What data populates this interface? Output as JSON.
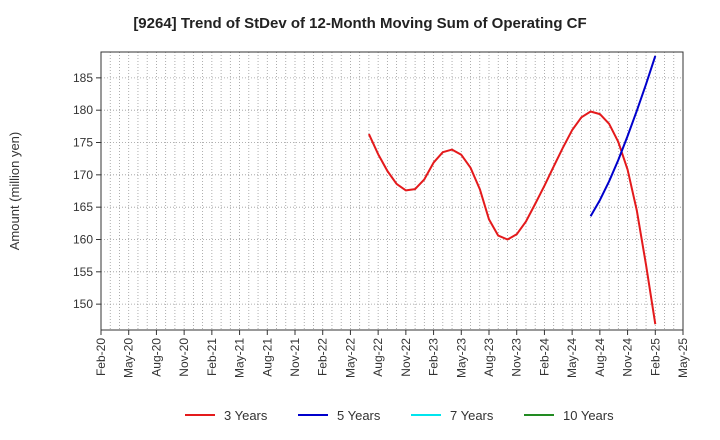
{
  "chart_data": {
    "type": "line",
    "title": "[9264]  Trend of StDev of 12-Month Moving Sum of Operating CF",
    "xlabel": "",
    "ylabel": "Amount (million yen)",
    "ylim": [
      146,
      189
    ],
    "yticks": [
      150,
      155,
      160,
      165,
      170,
      175,
      180,
      185
    ],
    "x_tick_labels": [
      "Feb-20",
      "May-20",
      "Aug-20",
      "Nov-20",
      "Feb-21",
      "May-21",
      "Aug-21",
      "Nov-21",
      "Feb-22",
      "May-22",
      "Aug-22",
      "Nov-22",
      "Feb-23",
      "May-23",
      "Aug-23",
      "Nov-23",
      "Feb-24",
      "May-24",
      "Aug-24",
      "Nov-24",
      "Feb-25",
      "May-25"
    ],
    "grid": true,
    "legend_position": "bottom",
    "series": [
      {
        "name": "3 Years",
        "color": "#e41a1c",
        "x": [
          "Jul-22",
          "Aug-22",
          "Sep-22",
          "Oct-22",
          "Nov-22",
          "Dec-22",
          "Jan-23",
          "Feb-23",
          "Mar-23",
          "Apr-23",
          "May-23",
          "Jun-23",
          "Jul-23",
          "Aug-23",
          "Sep-23",
          "Oct-23",
          "Nov-23",
          "Dec-23",
          "Jan-24",
          "Feb-24",
          "Mar-24",
          "Apr-24",
          "May-24",
          "Jun-24",
          "Jul-24",
          "Aug-24",
          "Sep-24",
          "Oct-24",
          "Nov-24",
          "Dec-24",
          "Jan-25",
          "Feb-25"
        ],
        "values": [
          176.3,
          173.2,
          170.6,
          168.6,
          167.6,
          167.8,
          169.3,
          171.9,
          173.5,
          173.9,
          173.1,
          171.1,
          167.8,
          163.1,
          160.6,
          160.0,
          160.8,
          162.8,
          165.5,
          168.3,
          171.3,
          174.2,
          176.9,
          178.9,
          179.8,
          179.4,
          177.9,
          175.1,
          170.8,
          164.5,
          156.1,
          146.9
        ]
      },
      {
        "name": "5 Years",
        "color": "#0000cc",
        "x": [
          "Jul-24",
          "Aug-24",
          "Sep-24",
          "Oct-24",
          "Nov-24",
          "Dec-24",
          "Jan-25",
          "Feb-25"
        ],
        "values": [
          163.6,
          166.1,
          169.0,
          172.3,
          176.0,
          179.9,
          184.0,
          188.4
        ]
      },
      {
        "name": "7 Years",
        "color": "#00e5ee",
        "x": [],
        "values": []
      },
      {
        "name": "10 Years",
        "color": "#228b22",
        "x": [],
        "values": []
      }
    ]
  }
}
